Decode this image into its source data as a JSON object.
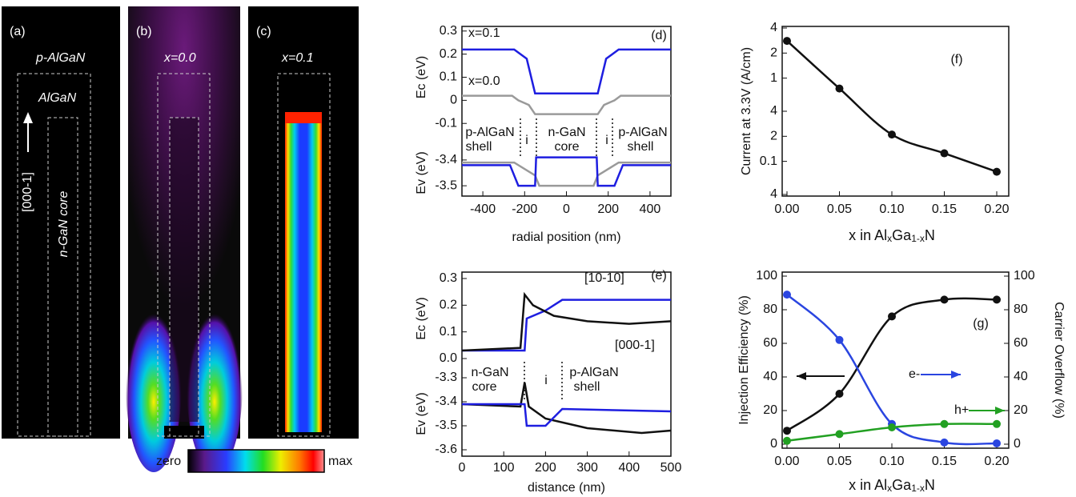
{
  "images": [
    {
      "label": "(a)",
      "texts": [
        "p-AlGaN",
        "AlGaN",
        "[000-1]",
        "n-GaN core"
      ]
    },
    {
      "label": "(b)",
      "texts": [
        "x=0.0"
      ]
    },
    {
      "label": "(c)",
      "texts": [
        "x=0.1"
      ]
    }
  ],
  "colorbar": {
    "min_label": "zero",
    "max_label": "max"
  },
  "chart_data": [
    {
      "type": "line",
      "panel_label": "(d)",
      "xlabel": "radial position (nm)",
      "xlim": [
        -500,
        500
      ],
      "xticks": [
        -400,
        -200,
        0,
        200,
        400
      ],
      "subplots": [
        {
          "ylabel": "Ec (eV)",
          "ylim": [
            -0.12,
            0.32
          ],
          "yticks": [
            -0.1,
            0,
            0.1,
            0.2,
            0.3
          ],
          "series": [
            {
              "name": "x=0.1",
              "color": "#1e1ee0",
              "x": [
                -500,
                -250,
                -190,
                -150,
                150,
                190,
                250,
                500
              ],
              "values": [
                0.22,
                0.22,
                0.18,
                0.03,
                0.03,
                0.18,
                0.22,
                0.22
              ]
            },
            {
              "name": "x=0.0",
              "color": "#9a9a9a",
              "x": [
                -500,
                -260,
                -230,
                -180,
                -150,
                150,
                180,
                230,
                260,
                500
              ],
              "values": [
                0.02,
                0.02,
                0.0,
                -0.02,
                -0.06,
                -0.06,
                -0.02,
                0.0,
                0.02,
                0.02
              ]
            }
          ]
        },
        {
          "ylabel": "Ev (eV)",
          "ylim": [
            -3.54,
            -3.36
          ],
          "yticks": [
            -3.5,
            -3.4
          ],
          "series": [
            {
              "color": "#9a9a9a",
              "x": [
                -500,
                -250,
                -150,
                -130,
                130,
                150,
                250,
                500
              ],
              "values": [
                -3.41,
                -3.41,
                -3.46,
                -3.5,
                -3.5,
                -3.46,
                -3.41,
                -3.41
              ]
            },
            {
              "color": "#1e1ee0",
              "x": [
                -500,
                -270,
                -230,
                -150,
                -145,
                145,
                150,
                230,
                270,
                500
              ],
              "values": [
                -3.42,
                -3.42,
                -3.5,
                -3.5,
                -3.39,
                -3.39,
                -3.5,
                -3.5,
                -3.42,
                -3.42
              ]
            }
          ]
        }
      ],
      "annotations": [
        {
          "lines": [
            "p-AlGaN",
            "shell"
          ]
        },
        {
          "lines": [
            "i"
          ]
        },
        {
          "lines": [
            "n-GaN",
            "core"
          ]
        },
        {
          "lines": [
            "i"
          ]
        },
        {
          "lines": [
            "p-AlGaN",
            "shell"
          ]
        }
      ]
    },
    {
      "type": "line",
      "panel_label": "(e)",
      "xlabel": "distance (nm)",
      "xlim": [
        0,
        500
      ],
      "xticks": [
        0,
        100,
        200,
        300,
        400,
        500
      ],
      "subplots": [
        {
          "ylabel": "Ec (eV)",
          "ylim": [
            0,
            0.3
          ],
          "yticks": [
            {
              "value": 0,
              "label": "0.0"
            },
            0.1,
            0.2,
            0.3
          ],
          "series": [
            {
              "name": "[10-10]",
              "color": "#1e1ee0",
              "x": [
                0,
                150,
                155,
                200,
                240,
                500
              ],
              "values": [
                0.03,
                0.03,
                0.15,
                0.18,
                0.22,
                0.22
              ]
            },
            {
              "name": "[000-1]",
              "color": "#111111",
              "x": [
                0,
                140,
                150,
                170,
                220,
                300,
                400,
                500
              ],
              "values": [
                0.03,
                0.04,
                0.24,
                0.2,
                0.16,
                0.14,
                0.13,
                0.14
              ]
            }
          ]
        },
        {
          "ylabel": "Ev (eV)",
          "ylim": [
            -3.6,
            -3.3
          ],
          "yticks": [
            -3.6,
            -3.5,
            -3.4,
            -3.3
          ],
          "series": [
            {
              "color": "#111111",
              "x": [
                0,
                140,
                150,
                160,
                200,
                300,
                430,
                500
              ],
              "values": [
                -3.41,
                -3.42,
                -3.32,
                -3.42,
                -3.47,
                -3.51,
                -3.53,
                -3.52
              ]
            },
            {
              "color": "#1e1ee0",
              "x": [
                0,
                150,
                155,
                200,
                240,
                500
              ],
              "values": [
                -3.41,
                -3.41,
                -3.5,
                -3.5,
                -3.43,
                -3.44
              ]
            }
          ]
        }
      ],
      "annotations": [
        {
          "lines": [
            "n-GaN",
            "core"
          ]
        },
        {
          "lines": [
            "i"
          ]
        },
        {
          "lines": [
            "p-AlGaN",
            "shell"
          ]
        }
      ]
    },
    {
      "type": "line",
      "panel_label": "(f)",
      "markers": true,
      "smooth": true,
      "log_y": true,
      "ylabel": "Current at 3.3V (A/cm)",
      "xlabel_parts": [
        "x in Al",
        "x",
        "Ga",
        "1-x",
        "N"
      ],
      "xlim": [
        0,
        0.2
      ],
      "xticks": [
        {
          "value": 0,
          "label": "0.00"
        },
        {
          "value": 0.05,
          "label": "0.05"
        },
        {
          "value": 0.1,
          "label": "0.10"
        },
        {
          "value": 0.15,
          "label": "0.15"
        },
        {
          "value": 0.2,
          "label": "0.20"
        }
      ],
      "ylim": [
        0.04,
        4
      ],
      "yticks": [
        4,
        2,
        1,
        {
          "value": 0.4,
          "label": "4"
        },
        {
          "value": 0.2,
          "label": "2"
        },
        0.1,
        {
          "value": 0.04,
          "label": "4"
        }
      ],
      "x": [
        0,
        0.05,
        0.1,
        0.15,
        0.2
      ],
      "series": [
        {
          "color": "#111111",
          "values": [
            2.8,
            0.75,
            0.21,
            0.125,
            0.075
          ]
        }
      ]
    },
    {
      "type": "line",
      "panel_label": "(g)",
      "markers": true,
      "smooth": true,
      "ylabel": "Injection Efficiency (%)",
      "y2label": "Carrier Overflow (%)",
      "xlabel_parts": [
        "x in Al",
        "x",
        "Ga",
        "1-x",
        "N"
      ],
      "xlim": [
        0,
        0.2
      ],
      "xticks": [
        {
          "value": 0,
          "label": "0.00"
        },
        {
          "value": 0.05,
          "label": "0.05"
        },
        {
          "value": 0.1,
          "label": "0.10"
        },
        {
          "value": 0.15,
          "label": "0.15"
        },
        {
          "value": 0.2,
          "label": "0.20"
        }
      ],
      "ylim": [
        0,
        100
      ],
      "yticks": [
        0,
        20,
        40,
        60,
        80,
        100
      ],
      "y2lim": [
        0,
        100
      ],
      "y2ticks": [
        0,
        20,
        40,
        60,
        80,
        100
      ],
      "x": [
        0,
        0.05,
        0.1,
        0.15,
        0.2
      ],
      "series": [
        {
          "color": "#111111",
          "values": [
            8,
            30,
            76,
            86,
            86
          ]
        },
        {
          "name": "e-",
          "color": "#2a45e0",
          "axis": "y2",
          "values": [
            89,
            62,
            12,
            1,
            0.5
          ]
        },
        {
          "name": "h+",
          "color": "#22a022",
          "axis": "y2",
          "values": [
            2,
            6,
            10,
            12,
            12
          ]
        }
      ]
    }
  ]
}
